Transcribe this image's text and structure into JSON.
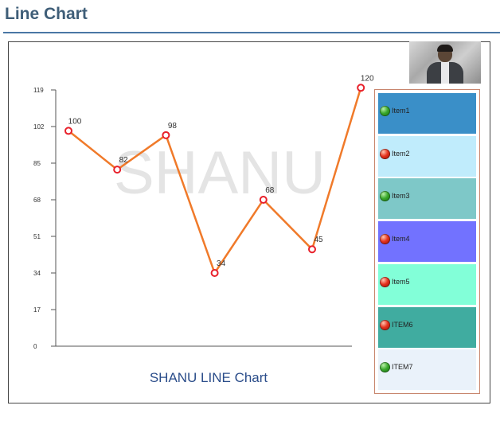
{
  "page": {
    "title": "Line Chart"
  },
  "chart_data": {
    "type": "line",
    "title": "SHANU LINE Chart",
    "watermark": "SHANU",
    "x": [
      1,
      2,
      3,
      4,
      5,
      6,
      7
    ],
    "values": [
      100,
      82,
      98,
      34,
      68,
      45,
      120
    ],
    "ylim": [
      0,
      119
    ],
    "yticks": [
      0,
      17,
      34,
      51,
      68,
      85,
      102,
      119
    ],
    "grid": false,
    "legend_position": "right",
    "line_color": "#f07a2a",
    "marker_color": "#e8202a"
  },
  "legend": {
    "items": [
      {
        "label": "Item1",
        "bg": "#3a8fc8",
        "dot": "green"
      },
      {
        "label": "Item2",
        "bg": "#c0ecfc",
        "dot": "red"
      },
      {
        "label": "Item3",
        "bg": "#7ec8c8",
        "dot": "green"
      },
      {
        "label": "Item4",
        "bg": "#7272ff",
        "dot": "red"
      },
      {
        "label": "Item5",
        "bg": "#82ffd8",
        "dot": "red"
      },
      {
        "label": "ITEM6",
        "bg": "#40aca0",
        "dot": "red"
      },
      {
        "label": "ITEM7",
        "bg": "#eaf2fa",
        "dot": "green"
      }
    ]
  }
}
